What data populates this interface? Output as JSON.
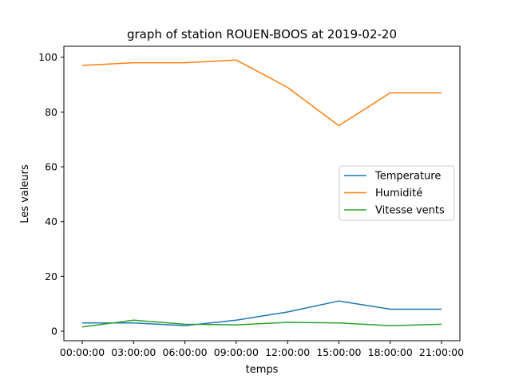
{
  "chart_data": {
    "type": "line",
    "title": "graph of station ROUEN-BOOS at 2019-02-20",
    "xlabel": "temps",
    "ylabel": "Les valeurs",
    "categories": [
      "00:00:00",
      "03:00:00",
      "06:00:00",
      "09:00:00",
      "12:00:00",
      "15:00:00",
      "18:00:00",
      "21:00:00"
    ],
    "yticks": [
      0,
      20,
      40,
      60,
      80,
      100
    ],
    "ylim": [
      -3.5,
      104
    ],
    "grid": false,
    "legend_position": "center-right",
    "series": [
      {
        "name": "Temperature",
        "color": "#1f77b4",
        "values": [
          3,
          3,
          2,
          4,
          7,
          11,
          8,
          8
        ]
      },
      {
        "name": "Humidité",
        "color": "#ff7f0e",
        "values": [
          97,
          98,
          98,
          99,
          89,
          75,
          87,
          87
        ]
      },
      {
        "name": "Vitesse vents",
        "color": "#2ca02c",
        "values": [
          1.5,
          4,
          2.5,
          2.3,
          3.2,
          3,
          2,
          2.5
        ]
      }
    ]
  }
}
